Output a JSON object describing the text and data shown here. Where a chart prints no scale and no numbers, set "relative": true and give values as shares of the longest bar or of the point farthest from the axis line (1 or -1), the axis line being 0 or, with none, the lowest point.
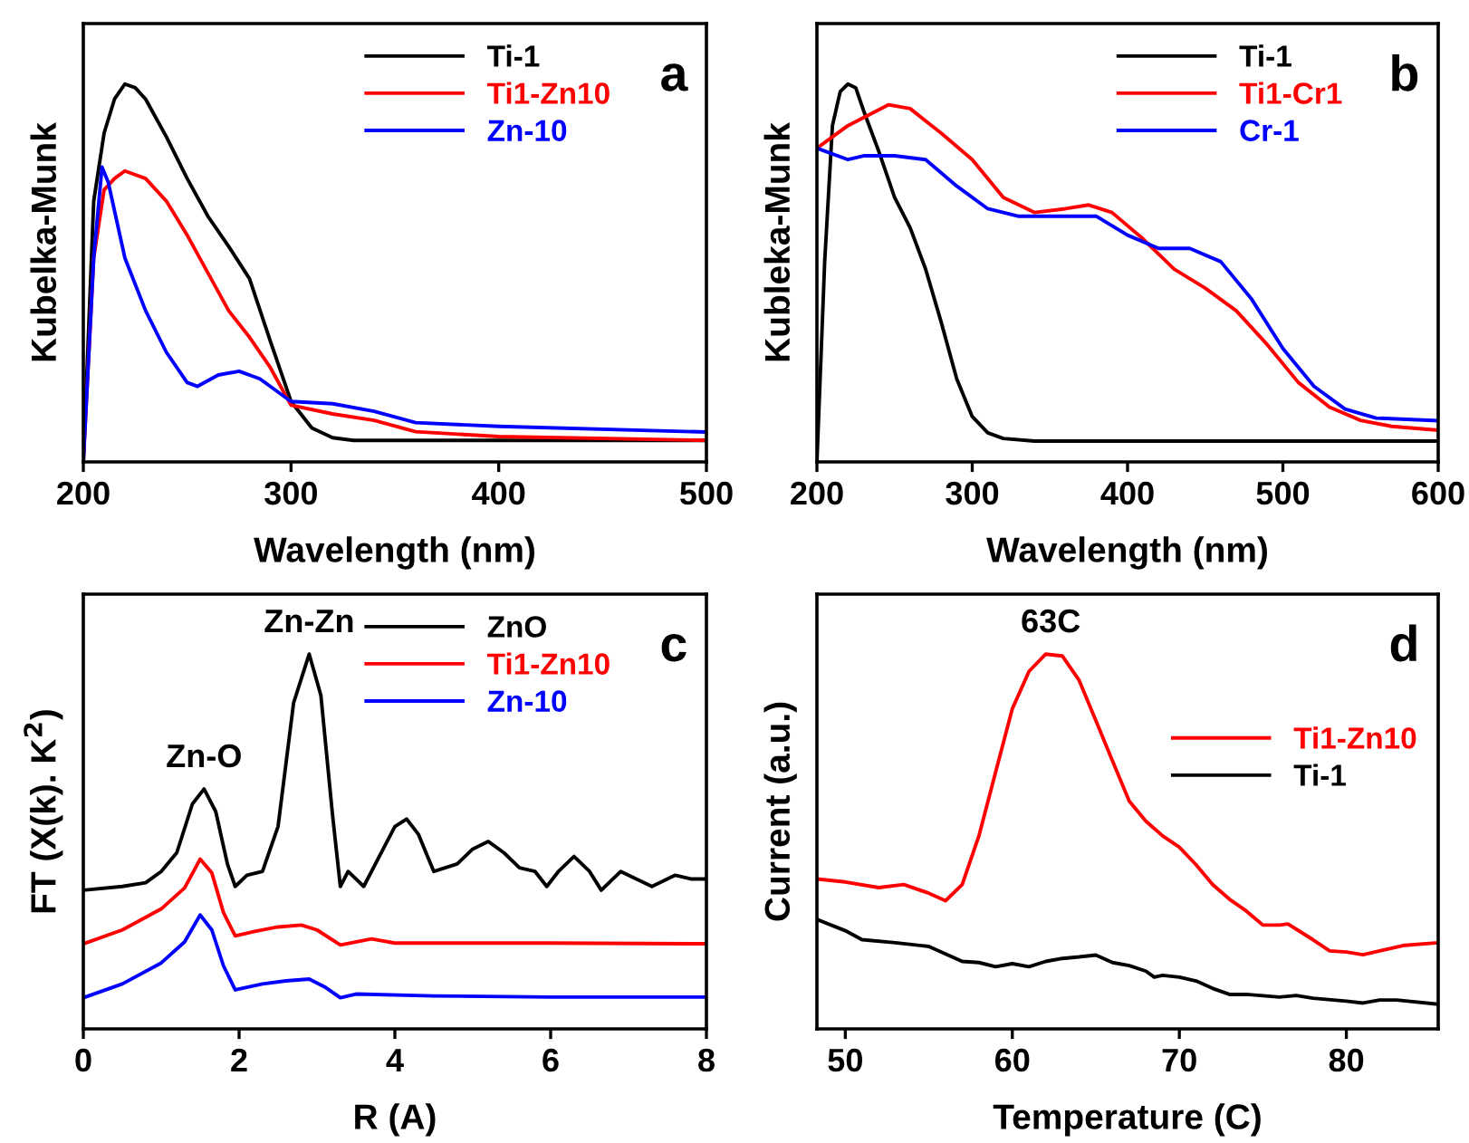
{
  "chart_data": [
    {
      "type": "line",
      "relative": true,
      "xlabel": "Wavelength (nm)",
      "ylabel": "Kubelka-Munk",
      "xlim": [
        200,
        500
      ],
      "xticks": [
        200,
        300,
        400,
        500
      ],
      "tick_labels": "x",
      "legend": "top right",
      "annotations": [
        "a"
      ],
      "series": [
        {
          "name": "Ti-1",
          "color": "#000000",
          "x": [
            200,
            205,
            210,
            215,
            220,
            225,
            230,
            240,
            250,
            260,
            270,
            280,
            290,
            300,
            310,
            320,
            330,
            400,
            500
          ],
          "values": [
            0,
            0.69,
            0.87,
            0.96,
            1.0,
            0.99,
            0.96,
            0.86,
            0.75,
            0.65,
            0.57,
            0.485,
            0.32,
            0.16,
            0.09,
            0.064,
            0.057,
            0.057,
            0.057
          ]
        },
        {
          "name": "Ti1-Zn10",
          "color": "#ff0000",
          "x": [
            200,
            205,
            210,
            215,
            220,
            230,
            240,
            250,
            260,
            270,
            280,
            290,
            300,
            320,
            340,
            360,
            400,
            500
          ],
          "values": [
            0,
            0.54,
            0.72,
            0.75,
            0.77,
            0.75,
            0.69,
            0.6,
            0.5,
            0.4,
            0.33,
            0.25,
            0.15,
            0.127,
            0.11,
            0.08,
            0.067,
            0.057
          ]
        },
        {
          "name": "Zn-10",
          "color": "#0000ff",
          "x": [
            200,
            205,
            209,
            212,
            220,
            230,
            240,
            250,
            255,
            265,
            275,
            285,
            300,
            320,
            340,
            360,
            400,
            500
          ],
          "values": [
            0,
            0.54,
            0.78,
            0.74,
            0.54,
            0.4,
            0.29,
            0.21,
            0.2,
            0.23,
            0.24,
            0.22,
            0.16,
            0.154,
            0.134,
            0.104,
            0.094,
            0.079
          ]
        }
      ]
    },
    {
      "type": "line",
      "relative": true,
      "xlabel": "Wavelength (nm)",
      "ylabel": "Kubleka-Munk",
      "xlim": [
        200,
        600
      ],
      "xticks": [
        200,
        300,
        400,
        500,
        600
      ],
      "tick_labels": "x",
      "legend": "top right",
      "annotations": [
        "b"
      ],
      "series": [
        {
          "name": "Ti-1",
          "color": "#000000",
          "x": [
            200,
            205,
            210,
            215,
            220,
            225,
            230,
            240,
            250,
            260,
            270,
            280,
            290,
            300,
            310,
            320,
            340,
            600
          ],
          "values": [
            0,
            0.53,
            0.89,
            0.98,
            1.0,
            0.99,
            0.93,
            0.82,
            0.7,
            0.62,
            0.51,
            0.37,
            0.22,
            0.12,
            0.077,
            0.062,
            0.055,
            0.055
          ]
        },
        {
          "name": "Ti1-Cr1",
          "color": "#ff0000",
          "x": [
            200,
            220,
            246,
            260,
            280,
            300,
            320,
            340,
            360,
            375,
            390,
            410,
            430,
            450,
            470,
            490,
            510,
            530,
            550,
            570,
            600
          ],
          "values": [
            0.83,
            0.89,
            0.945,
            0.935,
            0.87,
            0.8,
            0.7,
            0.66,
            0.67,
            0.68,
            0.66,
            0.59,
            0.51,
            0.46,
            0.4,
            0.31,
            0.21,
            0.145,
            0.11,
            0.094,
            0.084
          ]
        },
        {
          "name": "Cr-1",
          "color": "#0000ff",
          "x": [
            200,
            220,
            230,
            250,
            270,
            290,
            310,
            330,
            360,
            380,
            400,
            420,
            440,
            460,
            480,
            500,
            520,
            540,
            560,
            600
          ],
          "values": [
            0.83,
            0.8,
            0.81,
            0.81,
            0.8,
            0.73,
            0.67,
            0.65,
            0.65,
            0.65,
            0.6,
            0.565,
            0.565,
            0.53,
            0.43,
            0.3,
            0.2,
            0.14,
            0.116,
            0.109
          ]
        }
      ]
    },
    {
      "type": "line",
      "relative": true,
      "xlabel": "R (A)",
      "ylabel": "FT (X(k). K$^{2}$)",
      "xlim": [
        0,
        8
      ],
      "xticks": [
        0,
        2,
        4,
        6,
        8
      ],
      "tick_labels": "x",
      "legend": "top right",
      "annotations": [
        "c",
        {
          "text": "Zn-O",
          "x": 1.55,
          "y": 0.64
        },
        {
          "text": "Zn-Zn",
          "x": 2.9,
          "y": 1.0
        }
      ],
      "series": [
        {
          "name": "ZnO",
          "color": "#000000",
          "x": [
            0,
            0.5,
            0.8,
            1.0,
            1.2,
            1.4,
            1.55,
            1.7,
            1.85,
            1.95,
            2.1,
            2.3,
            2.5,
            2.7,
            2.9,
            3.05,
            3.2,
            3.3,
            3.4,
            3.6,
            3.8,
            4.0,
            4.15,
            4.3,
            4.5,
            4.8,
            5.0,
            5.2,
            5.4,
            5.6,
            5.8,
            5.95,
            6.1,
            6.3,
            6.5,
            6.65,
            6.9,
            7.1,
            7.3,
            7.6,
            7.8,
            8.0
          ],
          "values": [
            0.37,
            0.38,
            0.39,
            0.42,
            0.47,
            0.6,
            0.64,
            0.58,
            0.44,
            0.38,
            0.41,
            0.42,
            0.54,
            0.87,
            1.0,
            0.89,
            0.57,
            0.38,
            0.42,
            0.38,
            0.46,
            0.54,
            0.56,
            0.52,
            0.42,
            0.44,
            0.48,
            0.5,
            0.47,
            0.43,
            0.42,
            0.38,
            0.42,
            0.46,
            0.42,
            0.37,
            0.42,
            0.4,
            0.38,
            0.41,
            0.4,
            0.4
          ]
        },
        {
          "name": "Ti1-Zn10",
          "color": "#ff0000",
          "x": [
            0,
            0.5,
            1.0,
            1.3,
            1.5,
            1.65,
            1.8,
            1.95,
            2.2,
            2.5,
            2.8,
            3.0,
            3.3,
            3.7,
            4.0,
            5.0,
            6.0,
            8.0
          ],
          "values": [
            0.227,
            0.264,
            0.32,
            0.376,
            0.453,
            0.416,
            0.31,
            0.248,
            0.26,
            0.272,
            0.277,
            0.264,
            0.224,
            0.24,
            0.229,
            0.229,
            0.229,
            0.227
          ]
        },
        {
          "name": "Zn-10",
          "color": "#0000ff",
          "x": [
            0,
            0.5,
            1.0,
            1.3,
            1.5,
            1.65,
            1.8,
            1.95,
            2.3,
            2.6,
            2.9,
            3.1,
            3.3,
            3.5,
            4.5,
            6.0,
            8.0
          ],
          "values": [
            0.083,
            0.12,
            0.176,
            0.232,
            0.304,
            0.264,
            0.168,
            0.104,
            0.12,
            0.128,
            0.133,
            0.112,
            0.083,
            0.093,
            0.088,
            0.085,
            0.085
          ]
        }
      ]
    },
    {
      "type": "line",
      "relative": true,
      "xlabel": "Temperature (C)",
      "ylabel": "Current (a.u.)",
      "xlim": [
        48.3,
        85.5
      ],
      "xticks": [
        50,
        60,
        70,
        80
      ],
      "tick_labels": "x",
      "legend": "right",
      "annotations": [
        "d",
        {
          "text": "63C",
          "x": 62.3,
          "y": 1.0
        }
      ],
      "series": [
        {
          "name": "Ti1-Zn10",
          "color": "#ff0000",
          "x": [
            48.3,
            50,
            52,
            53.5,
            55,
            56,
            57,
            58,
            59,
            60,
            61,
            62,
            63,
            64,
            65,
            66,
            67,
            68,
            69,
            70,
            71,
            72,
            73,
            74,
            75,
            76,
            76.5,
            78,
            79,
            80,
            81,
            82,
            83.5,
            85.5
          ],
          "values": [
            0.4,
            0.392,
            0.377,
            0.385,
            0.362,
            0.342,
            0.385,
            0.515,
            0.685,
            0.854,
            0.954,
            1.0,
            0.995,
            0.93,
            0.823,
            0.715,
            0.608,
            0.554,
            0.515,
            0.485,
            0.438,
            0.385,
            0.346,
            0.315,
            0.277,
            0.277,
            0.28,
            0.238,
            0.208,
            0.205,
            0.198,
            0.208,
            0.223,
            0.23
          ]
        },
        {
          "name": "Ti-1",
          "color": "#000000",
          "x": [
            48.3,
            50,
            51,
            53,
            55,
            56,
            57,
            58,
            59,
            60,
            61,
            62,
            63,
            64,
            65,
            66,
            67,
            68,
            68.5,
            69,
            70,
            71,
            72,
            73,
            74,
            76,
            77,
            78,
            80,
            81,
            82,
            83,
            85.5
          ],
          "values": [
            0.292,
            0.262,
            0.238,
            0.23,
            0.22,
            0.2,
            0.18,
            0.177,
            0.166,
            0.174,
            0.166,
            0.18,
            0.188,
            0.192,
            0.197,
            0.177,
            0.169,
            0.154,
            0.138,
            0.143,
            0.138,
            0.128,
            0.108,
            0.092,
            0.092,
            0.085,
            0.089,
            0.082,
            0.074,
            0.069,
            0.077,
            0.077,
            0.066
          ]
        }
      ]
    }
  ]
}
